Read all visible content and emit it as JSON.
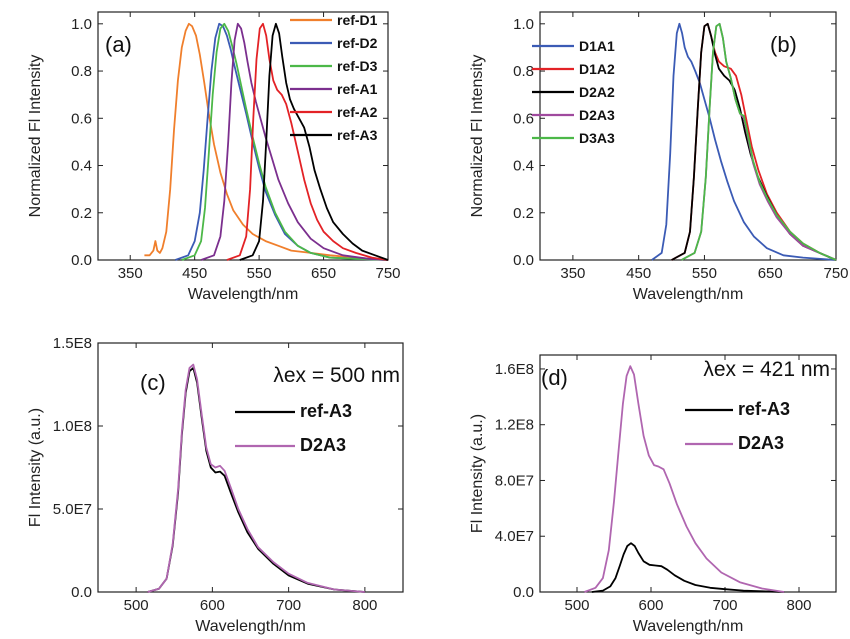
{
  "chart_data": [
    {
      "type": "line",
      "panel_label": "(a)",
      "xlabel": "Wavelength/nm",
      "ylabel": "Normalized Fl Intensity",
      "xlim": [
        300,
        750
      ],
      "ylim": [
        0,
        1.05
      ],
      "xticks": [
        "350",
        "450",
        "550",
        "650",
        "750"
      ],
      "yticks": [
        "0.0",
        "0.2",
        "0.4",
        "0.6",
        "0.8",
        "1.0"
      ],
      "legend": "top-right",
      "series": [
        {
          "name": "ref-D1",
          "color": "#f07f2c",
          "x": [
            372,
            380,
            386,
            389,
            392,
            396,
            400,
            406,
            412,
            418,
            424,
            430,
            436,
            441,
            446,
            452,
            458,
            465,
            472,
            480,
            490,
            500,
            510,
            525,
            540,
            560,
            580,
            600,
            630,
            660,
            700,
            750
          ],
          "y": [
            0.02,
            0.02,
            0.04,
            0.08,
            0.04,
            0.03,
            0.05,
            0.12,
            0.3,
            0.55,
            0.76,
            0.9,
            0.97,
            1.0,
            0.99,
            0.95,
            0.87,
            0.75,
            0.62,
            0.49,
            0.37,
            0.28,
            0.21,
            0.15,
            0.11,
            0.08,
            0.06,
            0.04,
            0.03,
            0.02,
            0.01,
            0.0
          ]
        },
        {
          "name": "ref-D2",
          "color": "#3b5bb5",
          "x": [
            420,
            440,
            450,
            458,
            464,
            470,
            476,
            482,
            488,
            494,
            500,
            506,
            512,
            520,
            530,
            540,
            550,
            560,
            575,
            590,
            610,
            630,
            660,
            700,
            750
          ],
          "y": [
            0.0,
            0.02,
            0.08,
            0.2,
            0.38,
            0.6,
            0.8,
            0.94,
            1.0,
            0.99,
            0.95,
            0.89,
            0.82,
            0.73,
            0.62,
            0.5,
            0.39,
            0.29,
            0.19,
            0.11,
            0.06,
            0.03,
            0.01,
            0.005,
            0.0
          ]
        },
        {
          "name": "ref-D3",
          "color": "#4cb848",
          "x": [
            430,
            450,
            460,
            466,
            472,
            478,
            484,
            490,
            496,
            502,
            508,
            515,
            522,
            530,
            540,
            550,
            560,
            575,
            590,
            610,
            630,
            660,
            700,
            750
          ],
          "y": [
            0.0,
            0.02,
            0.08,
            0.22,
            0.45,
            0.7,
            0.88,
            0.98,
            1.0,
            0.97,
            0.91,
            0.83,
            0.74,
            0.64,
            0.52,
            0.41,
            0.31,
            0.2,
            0.12,
            0.06,
            0.03,
            0.01,
            0.005,
            0.0
          ]
        },
        {
          "name": "ref-A1",
          "color": "#7b2f8e",
          "x": [
            460,
            480,
            490,
            496,
            502,
            507,
            512,
            517,
            522,
            527,
            532,
            538,
            545,
            552,
            560,
            570,
            580,
            595,
            610,
            630,
            650,
            680,
            720,
            750
          ],
          "y": [
            0.0,
            0.02,
            0.1,
            0.25,
            0.5,
            0.75,
            0.93,
            1.0,
            0.98,
            0.92,
            0.84,
            0.75,
            0.67,
            0.6,
            0.52,
            0.43,
            0.34,
            0.24,
            0.16,
            0.09,
            0.05,
            0.02,
            0.005,
            0.0
          ]
        },
        {
          "name": "ref-A2",
          "color": "#e32226",
          "x": [
            500,
            520,
            530,
            536,
            541,
            546,
            551,
            556,
            561,
            566,
            572,
            578,
            585,
            592,
            600,
            610,
            620,
            630,
            640,
            650,
            665,
            680,
            700,
            725,
            750
          ],
          "y": [
            0.0,
            0.02,
            0.1,
            0.3,
            0.6,
            0.85,
            0.98,
            1.0,
            0.95,
            0.85,
            0.76,
            0.72,
            0.7,
            0.66,
            0.58,
            0.46,
            0.34,
            0.24,
            0.17,
            0.12,
            0.08,
            0.05,
            0.03,
            0.01,
            0.0
          ]
        },
        {
          "name": "ref-A3",
          "color": "#000000",
          "x": [
            520,
            540,
            550,
            556,
            561,
            566,
            571,
            576,
            581,
            586,
            592,
            598,
            604,
            612,
            620,
            628,
            636,
            645,
            655,
            665,
            680,
            695,
            710,
            730,
            750
          ],
          "y": [
            0.0,
            0.02,
            0.08,
            0.25,
            0.5,
            0.78,
            0.95,
            1.0,
            0.96,
            0.86,
            0.75,
            0.68,
            0.64,
            0.6,
            0.56,
            0.48,
            0.38,
            0.3,
            0.22,
            0.16,
            0.11,
            0.07,
            0.04,
            0.02,
            0.0
          ]
        }
      ]
    },
    {
      "type": "line",
      "panel_label": "(b)",
      "xlabel": "Wavelength/nm",
      "ylabel": "Normalized Fl Intensity",
      "xlim": [
        300,
        750
      ],
      "ylim": [
        0,
        1.05
      ],
      "xticks": [
        "350",
        "450",
        "550",
        "650",
        "750"
      ],
      "yticks": [
        "0.0",
        "0.2",
        "0.4",
        "0.6",
        "0.8",
        "1.0"
      ],
      "legend": "top-left",
      "series": [
        {
          "name": "D1A1",
          "color": "#3b5bb5",
          "x": [
            470,
            485,
            492,
            498,
            503,
            508,
            512,
            516,
            520,
            525,
            530,
            536,
            543,
            550,
            558,
            566,
            575,
            585,
            595,
            610,
            625,
            645,
            670,
            700,
            750
          ],
          "y": [
            0.0,
            0.03,
            0.15,
            0.45,
            0.78,
            0.96,
            1.0,
            0.96,
            0.9,
            0.86,
            0.84,
            0.8,
            0.75,
            0.68,
            0.6,
            0.51,
            0.42,
            0.33,
            0.25,
            0.16,
            0.1,
            0.05,
            0.02,
            0.01,
            0.0
          ]
        },
        {
          "name": "D1A2",
          "color": "#e32226",
          "x": [
            500,
            520,
            528,
            534,
            540,
            545,
            550,
            555,
            560,
            566,
            572,
            580,
            590,
            598,
            606,
            614,
            622,
            632,
            645,
            660,
            680,
            700,
            725,
            750
          ],
          "y": [
            0.0,
            0.03,
            0.12,
            0.35,
            0.65,
            0.88,
            0.99,
            1.0,
            0.95,
            0.88,
            0.84,
            0.82,
            0.81,
            0.78,
            0.7,
            0.59,
            0.48,
            0.38,
            0.28,
            0.2,
            0.12,
            0.07,
            0.03,
            0.0
          ]
        },
        {
          "name": "D2A2",
          "color": "#000000",
          "x": [
            500,
            520,
            528,
            534,
            540,
            545,
            550,
            555,
            560,
            566,
            572,
            580,
            588,
            596,
            604,
            612,
            620,
            630,
            645,
            660,
            680,
            700,
            725,
            750
          ],
          "y": [
            0.0,
            0.03,
            0.12,
            0.35,
            0.65,
            0.88,
            0.99,
            1.0,
            0.95,
            0.87,
            0.81,
            0.78,
            0.76,
            0.72,
            0.64,
            0.54,
            0.45,
            0.36,
            0.27,
            0.19,
            0.11,
            0.06,
            0.03,
            0.0
          ]
        },
        {
          "name": "D2A3",
          "color": "#a04a9e",
          "x": [
            515,
            535,
            545,
            552,
            558,
            563,
            568,
            573,
            578,
            583,
            590,
            597,
            604,
            610,
            616,
            624,
            634,
            646,
            660,
            680,
            700,
            725,
            750
          ],
          "y": [
            0.0,
            0.03,
            0.12,
            0.35,
            0.65,
            0.88,
            0.99,
            1.0,
            0.94,
            0.84,
            0.77,
            0.68,
            0.62,
            0.6,
            0.52,
            0.41,
            0.32,
            0.25,
            0.18,
            0.11,
            0.06,
            0.03,
            0.0
          ]
        },
        {
          "name": "D3A3",
          "color": "#4cb848",
          "x": [
            515,
            535,
            545,
            552,
            558,
            563,
            568,
            573,
            578,
            583,
            590,
            597,
            604,
            610,
            616,
            624,
            634,
            646,
            660,
            680,
            700,
            725,
            750
          ],
          "y": [
            0.0,
            0.03,
            0.12,
            0.35,
            0.65,
            0.88,
            0.99,
            1.0,
            0.94,
            0.84,
            0.77,
            0.68,
            0.62,
            0.61,
            0.53,
            0.42,
            0.33,
            0.26,
            0.19,
            0.12,
            0.07,
            0.03,
            0.0
          ]
        }
      ]
    },
    {
      "type": "line",
      "panel_label": "(c)",
      "annotation": "λex = 500 nm",
      "xlabel": "Wavelength/nm",
      "ylabel": "Fl Intensity (a.u.)",
      "xlim": [
        450,
        850
      ],
      "ylim": [
        0,
        150000000
      ],
      "xticks": [
        "500",
        "600",
        "700",
        "800"
      ],
      "yticks": [
        "0.0",
        "5.0E7",
        "1.0E8",
        "1.5E8"
      ],
      "legend": "top-right",
      "series": [
        {
          "name": "ref-A3",
          "color": "#000000",
          "x": [
            515,
            530,
            540,
            548,
            555,
            560,
            565,
            570,
            575,
            580,
            586,
            592,
            598,
            604,
            610,
            616,
            624,
            634,
            646,
            660,
            680,
            700,
            725,
            760,
            800
          ],
          "y": [
            0,
            2000000,
            8000000,
            28000000,
            60000000,
            95000000,
            120000000,
            133000000,
            135000000,
            126000000,
            105000000,
            85000000,
            75000000,
            72000000,
            72500000,
            70000000,
            60000000,
            48000000,
            36000000,
            26000000,
            17000000,
            10000000,
            5000000,
            1500000,
            0
          ]
        },
        {
          "name": "D2A3",
          "color": "#b066b0",
          "x": [
            515,
            530,
            540,
            548,
            555,
            560,
            565,
            570,
            575,
            580,
            586,
            592,
            598,
            604,
            610,
            616,
            624,
            634,
            646,
            660,
            680,
            700,
            725,
            760,
            800
          ],
          "y": [
            0,
            2000000,
            8000000,
            29000000,
            62000000,
            97000000,
            122000000,
            135000000,
            137000000,
            128000000,
            107000000,
            87000000,
            77000000,
            75000000,
            76000000,
            73000000,
            63000000,
            50000000,
            38000000,
            27000000,
            18000000,
            11000000,
            5500000,
            1500000,
            0
          ]
        }
      ]
    },
    {
      "type": "line",
      "panel_label": "(d)",
      "annotation": "λex = 421 nm",
      "xlabel": "Wavelength/nm",
      "ylabel": "Fl Intensity (a.u.)",
      "xlim": [
        450,
        850
      ],
      "ylim": [
        0,
        170000000
      ],
      "xticks": [
        "500",
        "600",
        "700",
        "800"
      ],
      "yticks": [
        "0.0",
        "4.0E7",
        "8.0E7",
        "1.2E8",
        "1.6E8"
      ],
      "legend": "top-right",
      "series": [
        {
          "name": "ref-A3",
          "color": "#000000",
          "x": [
            520,
            535,
            545,
            552,
            558,
            563,
            568,
            573,
            578,
            583,
            590,
            598,
            606,
            614,
            622,
            632,
            645,
            660,
            680,
            700,
            725,
            750,
            780
          ],
          "y": [
            0,
            1000000,
            4000000,
            10000000,
            19000000,
            27000000,
            33000000,
            35000000,
            33000000,
            28000000,
            22000000,
            19500000,
            19000000,
            18500000,
            16000000,
            12000000,
            8000000,
            5000000,
            3000000,
            2000000,
            1000000,
            500000,
            0
          ]
        },
        {
          "name": "D2A3",
          "color": "#b066b0",
          "x": [
            510,
            525,
            535,
            543,
            550,
            556,
            562,
            567,
            572,
            577,
            583,
            590,
            597,
            604,
            610,
            617,
            625,
            635,
            648,
            660,
            675,
            695,
            720,
            750,
            780
          ],
          "y": [
            0,
            3000000,
            10000000,
            30000000,
            65000000,
            100000000,
            135000000,
            155000000,
            162000000,
            156000000,
            135000000,
            112000000,
            98000000,
            91000000,
            90000000,
            88000000,
            78000000,
            63000000,
            47000000,
            35000000,
            24000000,
            14000000,
            7000000,
            2500000,
            0
          ]
        }
      ]
    }
  ]
}
